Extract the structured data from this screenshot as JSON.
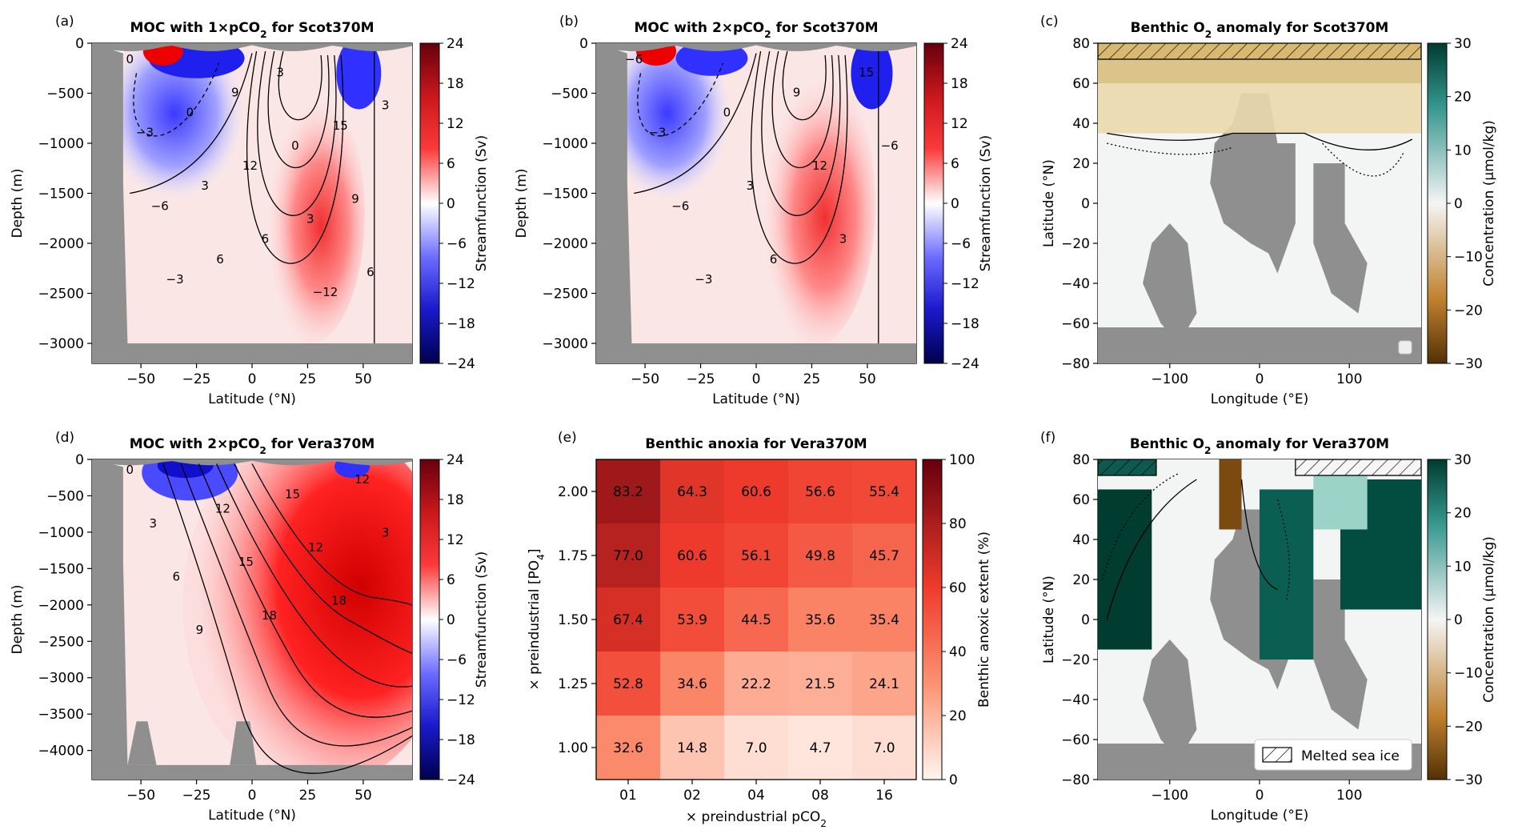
{
  "chart_data": [
    {
      "type": "heatmap",
      "panel_label": "(a)",
      "title_parts": [
        "MOC with 1",
        "×",
        "pCO",
        "2",
        " for Scot370M"
      ],
      "xlabel": "Latitude (°N)",
      "ylabel": "Depth (m)",
      "x_ticks": [
        -50,
        -25,
        0,
        25,
        50
      ],
      "x_tick_labels": [
        "−50",
        "−25",
        "0",
        "25",
        "50"
      ],
      "y_ticks": [
        0,
        -500,
        -1000,
        -1500,
        -2000,
        -2500,
        -3000
      ],
      "y_tick_labels": [
        "0",
        "−500",
        "−1000",
        "−1500",
        "−2000",
        "−2500",
        "−3000"
      ],
      "xlim": [
        -72,
        72
      ],
      "ylim": [
        -3200,
        0
      ],
      "colorbar": {
        "label": "Streamfunction (Sv)",
        "range": [
          -24,
          24
        ],
        "ticks": [
          24,
          18,
          12,
          6,
          0,
          -6,
          -12,
          -18,
          -24
        ],
        "tick_labels": [
          "24",
          "18",
          "12",
          "6",
          "0",
          "−6",
          "−12",
          "−18",
          "−24"
        ]
      },
      "contour_labels": [
        "0",
        "−3",
        "−6",
        "−3",
        "0",
        "3",
        "6",
        "9",
        "12",
        "6",
        "3",
        "0",
        "3",
        "−12",
        "15",
        "9",
        "6",
        "3"
      ]
    },
    {
      "type": "heatmap",
      "panel_label": "(b)",
      "title_parts": [
        "MOC with 2",
        "×",
        "pCO",
        "2",
        " for Scot370M"
      ],
      "xlabel": "Latitude (°N)",
      "ylabel": "Depth (m)",
      "x_ticks": [
        -50,
        -25,
        0,
        25,
        50
      ],
      "x_tick_labels": [
        "−50",
        "−25",
        "0",
        "25",
        "50"
      ],
      "y_ticks": [
        0,
        -500,
        -1000,
        -1500,
        -2000,
        -2500,
        -3000
      ],
      "y_tick_labels": [
        "0",
        "−500",
        "−1000",
        "−1500",
        "−2000",
        "−2500",
        "−3000"
      ],
      "xlim": [
        -72,
        72
      ],
      "ylim": [
        -3200,
        0
      ],
      "colorbar": {
        "label": "Streamfunction (Sv)",
        "range": [
          -24,
          24
        ],
        "ticks": [
          24,
          18,
          12,
          6,
          0,
          -6,
          -12,
          -18,
          -24
        ],
        "tick_labels": [
          "24",
          "18",
          "12",
          "6",
          "0",
          "−6",
          "−12",
          "−18",
          "−24"
        ]
      },
      "contour_labels": [
        "−6",
        "−3",
        "−6",
        "−3",
        "0",
        "3",
        "6",
        "9",
        "12",
        "3",
        "15",
        "−6"
      ]
    },
    {
      "type": "heatmap",
      "panel_label": "(c)",
      "title_parts": [
        "Benthic O",
        "2",
        " anomaly for Scot370M"
      ],
      "xlabel": "Longitude (°E)",
      "ylabel": "Latitude (°N)",
      "x_ticks": [
        -100,
        0,
        100
      ],
      "x_tick_labels": [
        "−100",
        "0",
        "100"
      ],
      "y_ticks": [
        80,
        60,
        40,
        20,
        0,
        -20,
        -40,
        -60,
        -80
      ],
      "y_tick_labels": [
        "80",
        "60",
        "40",
        "20",
        "0",
        "−20",
        "−40",
        "−60",
        "−80"
      ],
      "xlim": [
        -180,
        180
      ],
      "ylim": [
        -80,
        80
      ],
      "colorbar": {
        "label": "Concentration (µmol/kg)",
        "range": [
          -30,
          30
        ],
        "ticks": [
          30,
          20,
          10,
          0,
          -10,
          -20,
          -30
        ],
        "tick_labels": [
          "30",
          "20",
          "10",
          "0",
          "−10",
          "−20",
          "−30"
        ]
      }
    },
    {
      "type": "heatmap",
      "panel_label": "(d)",
      "title_parts": [
        "MOC with 2",
        "×",
        "pCO",
        "2",
        " for Vera370M"
      ],
      "xlabel": "Latitude (°N)",
      "ylabel": "Depth (m)",
      "x_ticks": [
        -50,
        -25,
        0,
        25,
        50
      ],
      "x_tick_labels": [
        "−50",
        "−25",
        "0",
        "25",
        "50"
      ],
      "y_ticks": [
        0,
        -500,
        -1000,
        -1500,
        -2000,
        -2500,
        -3000,
        -3500,
        -4000
      ],
      "y_tick_labels": [
        "0",
        "−500",
        "−1000",
        "−1500",
        "−2000",
        "−2500",
        "−3000",
        "−3500",
        "−4000"
      ],
      "xlim": [
        -72,
        72
      ],
      "ylim": [
        -4400,
        0
      ],
      "colorbar": {
        "label": "Streamfunction (Sv)",
        "range": [
          -24,
          24
        ],
        "ticks": [
          24,
          18,
          12,
          6,
          0,
          -6,
          -12,
          -18,
          -24
        ],
        "tick_labels": [
          "24",
          "18",
          "12",
          "6",
          "0",
          "−6",
          "−12",
          "−18",
          "−24"
        ]
      },
      "contour_labels": [
        "0",
        "3",
        "6",
        "9",
        "12",
        "15",
        "18",
        "15",
        "12",
        "18",
        "12",
        "3"
      ]
    },
    {
      "type": "heatmap",
      "panel_label": "(e)",
      "title": "Benthic anoxia for Vera370M",
      "xlabel_parts": [
        "×  preindustrial pCO",
        "2"
      ],
      "ylabel_parts": [
        "× preindustrial [PO",
        "4",
        "]"
      ],
      "x_categories": [
        "01",
        "02",
        "04",
        "08",
        "16"
      ],
      "y_categories": [
        "2.00",
        "1.75",
        "1.50",
        "1.25",
        "1.00"
      ],
      "values": [
        [
          83.2,
          64.3,
          60.6,
          56.6,
          55.4
        ],
        [
          77.0,
          60.6,
          56.1,
          49.8,
          45.7
        ],
        [
          67.4,
          53.9,
          44.5,
          35.6,
          35.4
        ],
        [
          52.8,
          34.6,
          22.2,
          21.5,
          24.1
        ],
        [
          32.6,
          14.8,
          7.0,
          4.7,
          7.0
        ]
      ],
      "value_labels": [
        [
          "83.2",
          "64.3",
          "60.6",
          "56.6",
          "55.4"
        ],
        [
          "77.0",
          "60.6",
          "56.1",
          "49.8",
          "45.7"
        ],
        [
          "67.4",
          "53.9",
          "44.5",
          "35.6",
          "35.4"
        ],
        [
          "52.8",
          "34.6",
          "22.2",
          "21.5",
          "24.1"
        ],
        [
          "32.6",
          "14.8",
          "7.0",
          "4.7",
          "7.0"
        ]
      ],
      "colorbar": {
        "label": "Benthic anoxic extent (%)",
        "range": [
          0,
          100
        ],
        "ticks": [
          100,
          80,
          60,
          40,
          20,
          0
        ],
        "tick_labels": [
          "100",
          "80",
          "60",
          "40",
          "20",
          "0"
        ]
      }
    },
    {
      "type": "heatmap",
      "panel_label": "(f)",
      "title_parts": [
        "Benthic O",
        "2",
        " anomaly for Vera370M"
      ],
      "xlabel": "Longitude (°E)",
      "ylabel": "Latitude (°N)",
      "x_ticks": [
        -100,
        0,
        100
      ],
      "x_tick_labels": [
        "−100",
        "0",
        "100"
      ],
      "y_ticks": [
        80,
        60,
        40,
        20,
        0,
        -20,
        -40,
        -60,
        -80
      ],
      "y_tick_labels": [
        "80",
        "60",
        "40",
        "20",
        "0",
        "−20",
        "−40",
        "−60",
        "−80"
      ],
      "xlim": [
        -180,
        180
      ],
      "ylim": [
        -80,
        80
      ],
      "legend": {
        "label": "Melted sea ice",
        "position": "lower-right"
      },
      "colorbar": {
        "label": "Concentration (µmol/kg)",
        "range": [
          -30,
          30
        ],
        "ticks": [
          30,
          20,
          10,
          0,
          -10,
          -20,
          -30
        ],
        "tick_labels": [
          "30",
          "20",
          "10",
          "0",
          "−10",
          "−20",
          "−30"
        ]
      }
    }
  ]
}
